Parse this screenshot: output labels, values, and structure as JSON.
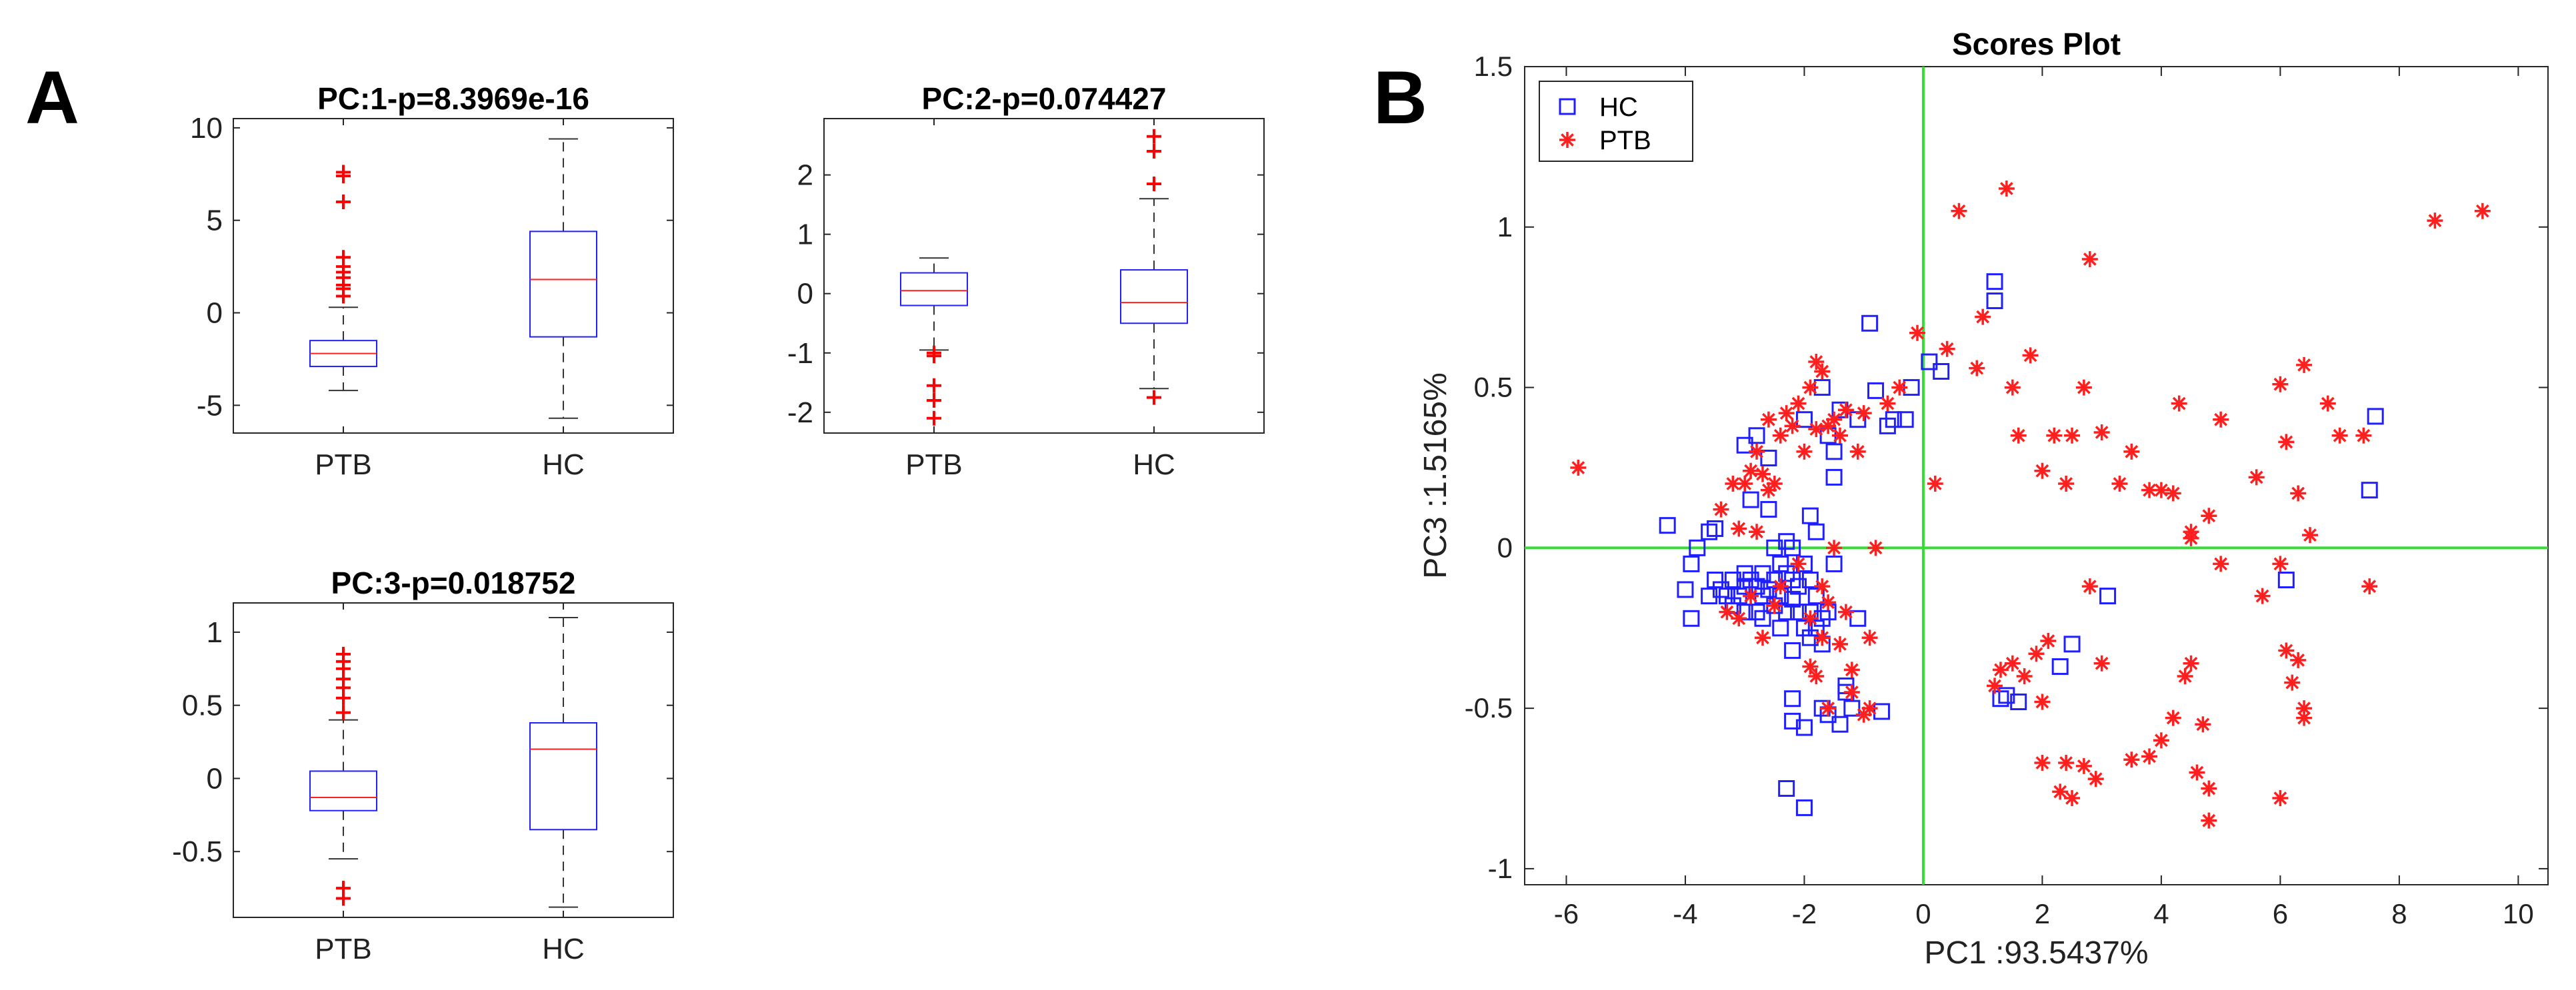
{
  "panels": {
    "a": "A",
    "b": "B"
  },
  "colors": {
    "group_a": "#1f1fff",
    "group_b": "#ff1f1f",
    "crosshair": "#33dd33",
    "whisker": "#333333",
    "outlier": "#ff0000"
  },
  "chart_data": [
    {
      "type": "box",
      "title": "PC:1-p=8.3969e-16",
      "categories": [
        "PTB",
        "HC"
      ],
      "ylim": [
        -6.5,
        10.5
      ],
      "yticks": [
        -5,
        0,
        5,
        10
      ],
      "boxes": [
        {
          "category": "PTB",
          "whisker_low": -4.2,
          "q1": -2.9,
          "median": -2.2,
          "q3": -1.5,
          "whisker_high": 0.3,
          "outliers": [
            0.9,
            1.3,
            1.5,
            1.9,
            2.2,
            2.5,
            3.0,
            6.0,
            7.4,
            7.6
          ]
        },
        {
          "category": "HC",
          "whisker_low": -5.7,
          "q1": -1.3,
          "median": 1.8,
          "q3": 4.4,
          "whisker_high": 9.4,
          "outliers": []
        }
      ]
    },
    {
      "type": "box",
      "title": "PC:2-p=0.074427",
      "categories": [
        "PTB",
        "HC"
      ],
      "ylim": [
        -2.35,
        2.95
      ],
      "yticks": [
        -2,
        -1,
        0,
        1,
        2
      ],
      "boxes": [
        {
          "category": "PTB",
          "whisker_low": -0.95,
          "q1": -0.2,
          "median": 0.05,
          "q3": 0.35,
          "whisker_high": 0.6,
          "outliers": [
            -1.0,
            -1.05,
            -1.55,
            -1.8,
            -2.1
          ]
        },
        {
          "category": "HC",
          "whisker_low": -1.6,
          "q1": -0.5,
          "median": -0.15,
          "q3": 0.4,
          "whisker_high": 1.6,
          "outliers": [
            -1.75,
            1.85,
            2.4,
            2.65
          ]
        }
      ]
    },
    {
      "type": "box",
      "title": "PC:3-p=0.018752",
      "categories": [
        "PTB",
        "HC"
      ],
      "ylim": [
        -0.95,
        1.2
      ],
      "yticks": [
        -0.5,
        0,
        0.5,
        1
      ],
      "yticklabels": [
        "-0.5",
        "0",
        "0.5",
        "1"
      ],
      "boxes": [
        {
          "category": "PTB",
          "whisker_low": -0.55,
          "q1": -0.22,
          "median": -0.13,
          "q3": 0.05,
          "whisker_high": 0.4,
          "outliers": [
            0.45,
            0.55,
            0.62,
            0.68,
            0.75,
            0.8,
            0.85,
            -0.75,
            -0.82
          ]
        },
        {
          "category": "HC",
          "whisker_low": -0.88,
          "q1": -0.35,
          "median": 0.2,
          "q3": 0.38,
          "whisker_high": 1.1,
          "outliers": []
        }
      ]
    },
    {
      "type": "scatter",
      "title": "Scores Plot",
      "xlabel": "PC1 :93.5437%",
      "ylabel": "PC3 :1.5165%",
      "xlim": [
        -6.7,
        10.5
      ],
      "ylim": [
        -1.05,
        1.5
      ],
      "xticks": [
        -6,
        -4,
        -2,
        0,
        2,
        4,
        6,
        8,
        10
      ],
      "yticks": [
        -1,
        -0.5,
        0,
        0.5,
        1,
        1.5
      ],
      "yticklabels": [
        "-1",
        "-0.5",
        "0",
        "0.5",
        "1",
        "1.5"
      ],
      "legend_position": "top-left",
      "grid": false,
      "series": [
        {
          "name": "HC",
          "marker": "square",
          "color": "#1f1fff",
          "points": [
            [
              -4.3,
              0.07
            ],
            [
              -4.0,
              -0.13
            ],
            [
              -3.9,
              -0.05
            ],
            [
              -3.8,
              0.0
            ],
            [
              -3.6,
              0.05
            ],
            [
              -3.5,
              0.06
            ],
            [
              -3.5,
              -0.1
            ],
            [
              -3.4,
              -0.13
            ],
            [
              -3.3,
              -0.15
            ],
            [
              -3.2,
              -0.1
            ],
            [
              -3.1,
              -0.15
            ],
            [
              -3.0,
              -0.2
            ],
            [
              -3.0,
              0.32
            ],
            [
              -3.0,
              -0.08
            ],
            [
              -2.9,
              -0.1
            ],
            [
              -2.9,
              0.15
            ],
            [
              -2.8,
              -0.12
            ],
            [
              -2.8,
              -0.2
            ],
            [
              -2.8,
              0.35
            ],
            [
              -2.7,
              -0.15
            ],
            [
              -2.7,
              -0.08
            ],
            [
              -2.6,
              -0.13
            ],
            [
              -2.6,
              0.28
            ],
            [
              -2.5,
              -0.1
            ],
            [
              -2.5,
              -0.18
            ],
            [
              -2.5,
              0.0
            ],
            [
              -2.4,
              -0.05
            ],
            [
              -2.4,
              -0.15
            ],
            [
              -2.3,
              -0.2
            ],
            [
              -2.3,
              0.02
            ],
            [
              -2.3,
              -0.08
            ],
            [
              -2.2,
              -0.1
            ],
            [
              -2.2,
              -0.16
            ],
            [
              -2.2,
              0.0
            ],
            [
              -2.1,
              -0.12
            ],
            [
              -2.1,
              -0.2
            ],
            [
              -2.0,
              -0.05
            ],
            [
              -2.0,
              -0.25
            ],
            [
              -2.0,
              0.4
            ],
            [
              -1.9,
              -0.2
            ],
            [
              -1.9,
              -0.28
            ],
            [
              -1.9,
              0.1
            ],
            [
              -1.9,
              -0.1
            ],
            [
              -1.8,
              -0.15
            ],
            [
              -1.8,
              -0.25
            ],
            [
              -1.8,
              0.05
            ],
            [
              -1.7,
              -0.22
            ],
            [
              -1.7,
              -0.3
            ],
            [
              -1.7,
              0.5
            ],
            [
              -1.6,
              -0.2
            ],
            [
              -1.6,
              0.35
            ],
            [
              -1.5,
              0.3
            ],
            [
              -1.5,
              -0.05
            ],
            [
              -1.4,
              0.43
            ],
            [
              -1.3,
              -0.45
            ],
            [
              -1.2,
              -0.5
            ],
            [
              -1.1,
              0.4
            ],
            [
              -1.1,
              -0.22
            ],
            [
              -0.9,
              0.7
            ],
            [
              -0.8,
              0.49
            ],
            [
              -0.7,
              -0.51
            ],
            [
              -0.6,
              0.38
            ],
            [
              -0.5,
              0.4
            ],
            [
              -0.3,
              0.4
            ],
            [
              -0.2,
              0.5
            ],
            [
              0.1,
              0.58
            ],
            [
              0.3,
              0.55
            ],
            [
              1.2,
              0.83
            ],
            [
              1.2,
              0.77
            ],
            [
              1.3,
              -0.47
            ],
            [
              1.4,
              -0.46
            ],
            [
              1.6,
              -0.48
            ],
            [
              2.5,
              -0.3
            ],
            [
              3.1,
              -0.15
            ],
            [
              7.5,
              0.18
            ],
            [
              7.6,
              0.41
            ],
            [
              -2.3,
              -0.75
            ],
            [
              -2.0,
              -0.81
            ],
            [
              -2.2,
              -0.54
            ],
            [
              -2.0,
              -0.56
            ],
            [
              -1.7,
              -0.5
            ],
            [
              -2.2,
              -0.32
            ],
            [
              -2.4,
              -0.25
            ],
            [
              -1.3,
              -0.43
            ],
            [
              -1.4,
              -0.55
            ],
            [
              -1.6,
              -0.52
            ],
            [
              -3.0,
              -0.12
            ],
            [
              -3.2,
              -0.18
            ],
            [
              -2.7,
              -0.22
            ],
            [
              -3.6,
              -0.15
            ],
            [
              -3.9,
              -0.22
            ],
            [
              -2.2,
              -0.47
            ],
            [
              -1.5,
              0.22
            ],
            [
              -2.6,
              0.12
            ],
            [
              6.1,
              -0.1
            ],
            [
              2.3,
              -0.37
            ]
          ]
        },
        {
          "name": "PTB",
          "marker": "star",
          "color": "#ff1f1f",
          "points": [
            [
              -5.8,
              0.25
            ],
            [
              -3.4,
              0.12
            ],
            [
              -3.3,
              -0.2
            ],
            [
              -3.2,
              0.2
            ],
            [
              -3.1,
              -0.22
            ],
            [
              -3.0,
              0.2
            ],
            [
              -2.9,
              0.24
            ],
            [
              -2.8,
              0.3
            ],
            [
              -2.7,
              0.23
            ],
            [
              -2.6,
              0.4
            ],
            [
              -2.5,
              0.2
            ],
            [
              -2.5,
              -0.18
            ],
            [
              -2.4,
              0.35
            ],
            [
              -2.3,
              0.42
            ],
            [
              -2.2,
              0.38
            ],
            [
              -2.1,
              0.45
            ],
            [
              -2.0,
              0.3
            ],
            [
              -1.9,
              0.5
            ],
            [
              -1.8,
              0.58
            ],
            [
              -1.8,
              0.37
            ],
            [
              -1.7,
              0.55
            ],
            [
              -1.7,
              -0.28
            ],
            [
              -1.6,
              0.38
            ],
            [
              -1.5,
              0.4
            ],
            [
              -1.4,
              0.35
            ],
            [
              -1.3,
              0.43
            ],
            [
              -1.2,
              -0.38
            ],
            [
              -1.1,
              0.3
            ],
            [
              -1.0,
              0.42
            ],
            [
              -0.9,
              -0.5
            ],
            [
              -0.6,
              0.45
            ],
            [
              -0.4,
              0.5
            ],
            [
              -0.1,
              0.67
            ],
            [
              0.2,
              0.2
            ],
            [
              0.4,
              0.62
            ],
            [
              0.6,
              1.05
            ],
            [
              0.9,
              0.56
            ],
            [
              1.0,
              0.72
            ],
            [
              1.4,
              1.12
            ],
            [
              1.5,
              0.5
            ],
            [
              1.6,
              0.35
            ],
            [
              1.8,
              0.6
            ],
            [
              2.0,
              0.24
            ],
            [
              2.2,
              0.35
            ],
            [
              2.4,
              0.2
            ],
            [
              2.5,
              0.35
            ],
            [
              2.7,
              0.5
            ],
            [
              2.8,
              0.9
            ],
            [
              3.0,
              0.36
            ],
            [
              3.3,
              0.2
            ],
            [
              3.5,
              0.3
            ],
            [
              3.8,
              0.18
            ],
            [
              4.0,
              0.18
            ],
            [
              4.2,
              0.17
            ],
            [
              4.3,
              0.45
            ],
            [
              4.5,
              0.05
            ],
            [
              4.5,
              0.03
            ],
            [
              4.8,
              0.1
            ],
            [
              5.0,
              0.4
            ],
            [
              5.6,
              0.22
            ],
            [
              6.0,
              0.51
            ],
            [
              6.1,
              0.33
            ],
            [
              6.3,
              0.17
            ],
            [
              6.4,
              0.57
            ],
            [
              6.5,
              0.04
            ],
            [
              6.8,
              0.45
            ],
            [
              7.0,
              0.35
            ],
            [
              7.4,
              0.35
            ],
            [
              8.6,
              1.02
            ],
            [
              9.4,
              1.05
            ],
            [
              1.2,
              -0.43
            ],
            [
              1.3,
              -0.38
            ],
            [
              1.5,
              -0.36
            ],
            [
              1.7,
              -0.4
            ],
            [
              1.9,
              -0.33
            ],
            [
              2.0,
              -0.48
            ],
            [
              2.1,
              -0.29
            ],
            [
              2.0,
              -0.67
            ],
            [
              2.3,
              -0.76
            ],
            [
              2.5,
              -0.78
            ],
            [
              2.4,
              -0.67
            ],
            [
              2.7,
              -0.68
            ],
            [
              2.8,
              -0.12
            ],
            [
              2.9,
              -0.72
            ],
            [
              3.0,
              -0.36
            ],
            [
              3.5,
              -0.66
            ],
            [
              3.8,
              -0.65
            ],
            [
              4.0,
              -0.6
            ],
            [
              4.2,
              -0.53
            ],
            [
              4.4,
              -0.4
            ],
            [
              4.5,
              -0.36
            ],
            [
              4.6,
              -0.7
            ],
            [
              4.7,
              -0.55
            ],
            [
              4.8,
              -0.85
            ],
            [
              4.8,
              -0.75
            ],
            [
              5.0,
              -0.05
            ],
            [
              5.7,
              -0.15
            ],
            [
              6.0,
              -0.78
            ],
            [
              6.1,
              -0.32
            ],
            [
              6.2,
              -0.42
            ],
            [
              6.4,
              -0.5
            ],
            [
              6.4,
              -0.53
            ],
            [
              6.3,
              -0.35
            ],
            [
              6.0,
              -0.05
            ],
            [
              7.5,
              -0.12
            ],
            [
              -2.9,
              -0.15
            ],
            [
              -2.1,
              -0.05
            ],
            [
              -1.7,
              -0.12
            ],
            [
              -1.9,
              -0.37
            ],
            [
              -2.8,
              0.05
            ],
            [
              -1.8,
              -0.4
            ],
            [
              -1.6,
              -0.5
            ],
            [
              -1.2,
              -0.45
            ],
            [
              -1.0,
              -0.52
            ],
            [
              -2.4,
              -0.12
            ],
            [
              -2.6,
              0.18
            ],
            [
              -1.5,
              0.0
            ],
            [
              -0.8,
              0.0
            ],
            [
              -1.3,
              -0.2
            ],
            [
              -0.9,
              -0.28
            ],
            [
              -1.9,
              -0.22
            ],
            [
              -3.1,
              0.06
            ],
            [
              -2.7,
              -0.28
            ],
            [
              -1.6,
              -0.17
            ],
            [
              -1.4,
              -0.3
            ]
          ]
        }
      ]
    }
  ]
}
